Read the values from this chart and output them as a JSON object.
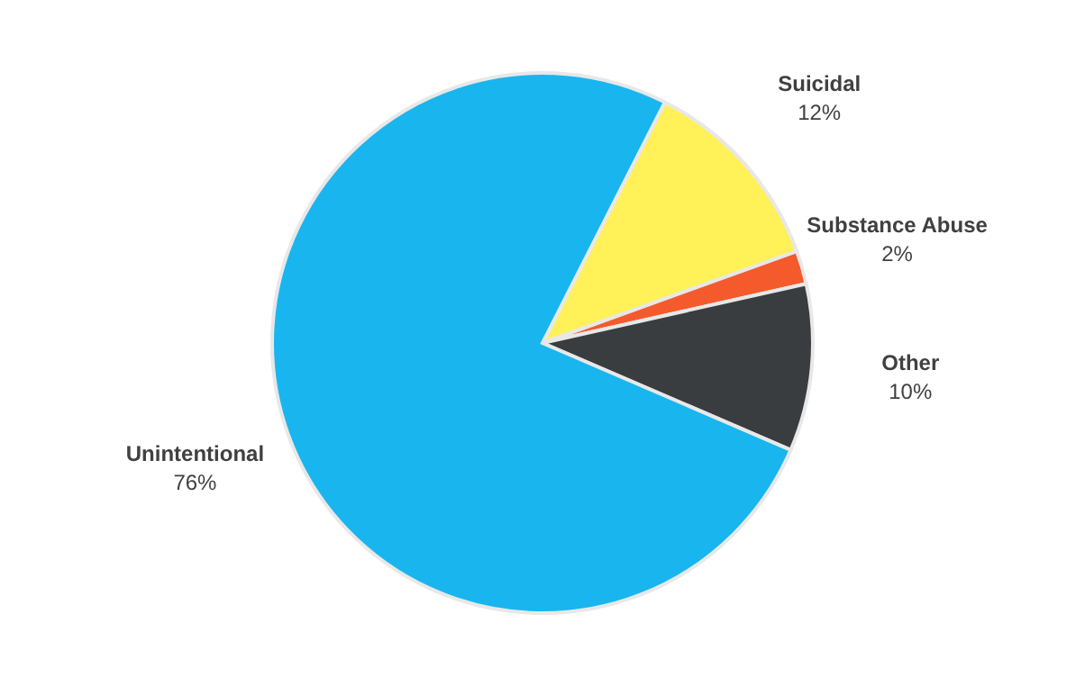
{
  "chart_data": {
    "type": "pie",
    "categories": [
      "Suicidal",
      "Substance Abuse",
      "Other",
      "Unintentional"
    ],
    "values": [
      12,
      2,
      10,
      76
    ],
    "colors": [
      "#fff157",
      "#f55a2c",
      "#3a3d40",
      "#19b5ef"
    ],
    "value_labels": [
      "12%",
      "2%",
      "10%",
      "76%"
    ],
    "legend": false
  }
}
